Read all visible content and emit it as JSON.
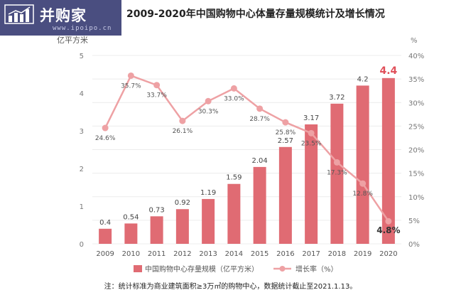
{
  "logo": {
    "title": "并购家",
    "url": "www.ipoipo.cn",
    "icon": "rising-bar-chart-icon"
  },
  "footnote": "注：统计标准为商业建筑面积≥3万㎡的购物中心，数据统计截止至2021.1.13。",
  "colors": {
    "bar": "#e06b73",
    "line": "#eea1a4",
    "highlight": "#e0505a",
    "logo_bg": "#4a4e80"
  },
  "chart_data": {
    "type": "bar",
    "title": "2009-2020年中国购物中心体量存量规模统计及增长情况",
    "categories": [
      "2009",
      "2010",
      "2011",
      "2012",
      "2013",
      "2014",
      "2015",
      "2016",
      "2017",
      "2018",
      "2019",
      "2020"
    ],
    "ylabel": "亿平方米",
    "ylim": [
      0,
      5
    ],
    "yticks": [
      "0",
      "1",
      "2",
      "3",
      "4",
      "5"
    ],
    "y2label": "%",
    "y2lim": [
      0,
      40
    ],
    "y2ticks": [
      "0%",
      "5%",
      "10%",
      "15%",
      "20%",
      "25%",
      "30%",
      "35%",
      "40%"
    ],
    "grid": true,
    "legend_position": "bottom",
    "series": [
      {
        "name": "中国购物中心存量规模（亿平方米）",
        "type": "bar",
        "axis": "left",
        "values": [
          0.4,
          0.54,
          0.73,
          0.92,
          1.19,
          1.59,
          2.04,
          2.57,
          3.17,
          3.72,
          4.2,
          4.4
        ],
        "labels": [
          "0.4",
          "0.54",
          "0.73",
          "0.92",
          "1.19",
          "1.59",
          "2.04",
          "2.57",
          "3.17",
          "3.72",
          "4.2",
          "4.4"
        ]
      },
      {
        "name": "增长率（%）",
        "type": "line",
        "axis": "right",
        "values": [
          24.6,
          35.7,
          33.7,
          26.1,
          30.3,
          33.0,
          28.7,
          25.8,
          23.5,
          17.3,
          12.8,
          4.8
        ],
        "labels": [
          "24.6%",
          "35.7%",
          "33.7%",
          "26.1%",
          "30.3%",
          "33.0%",
          "28.7%",
          "25.8%",
          "23.5%",
          "17.3%",
          "12.8%",
          "4.8%"
        ]
      }
    ]
  }
}
